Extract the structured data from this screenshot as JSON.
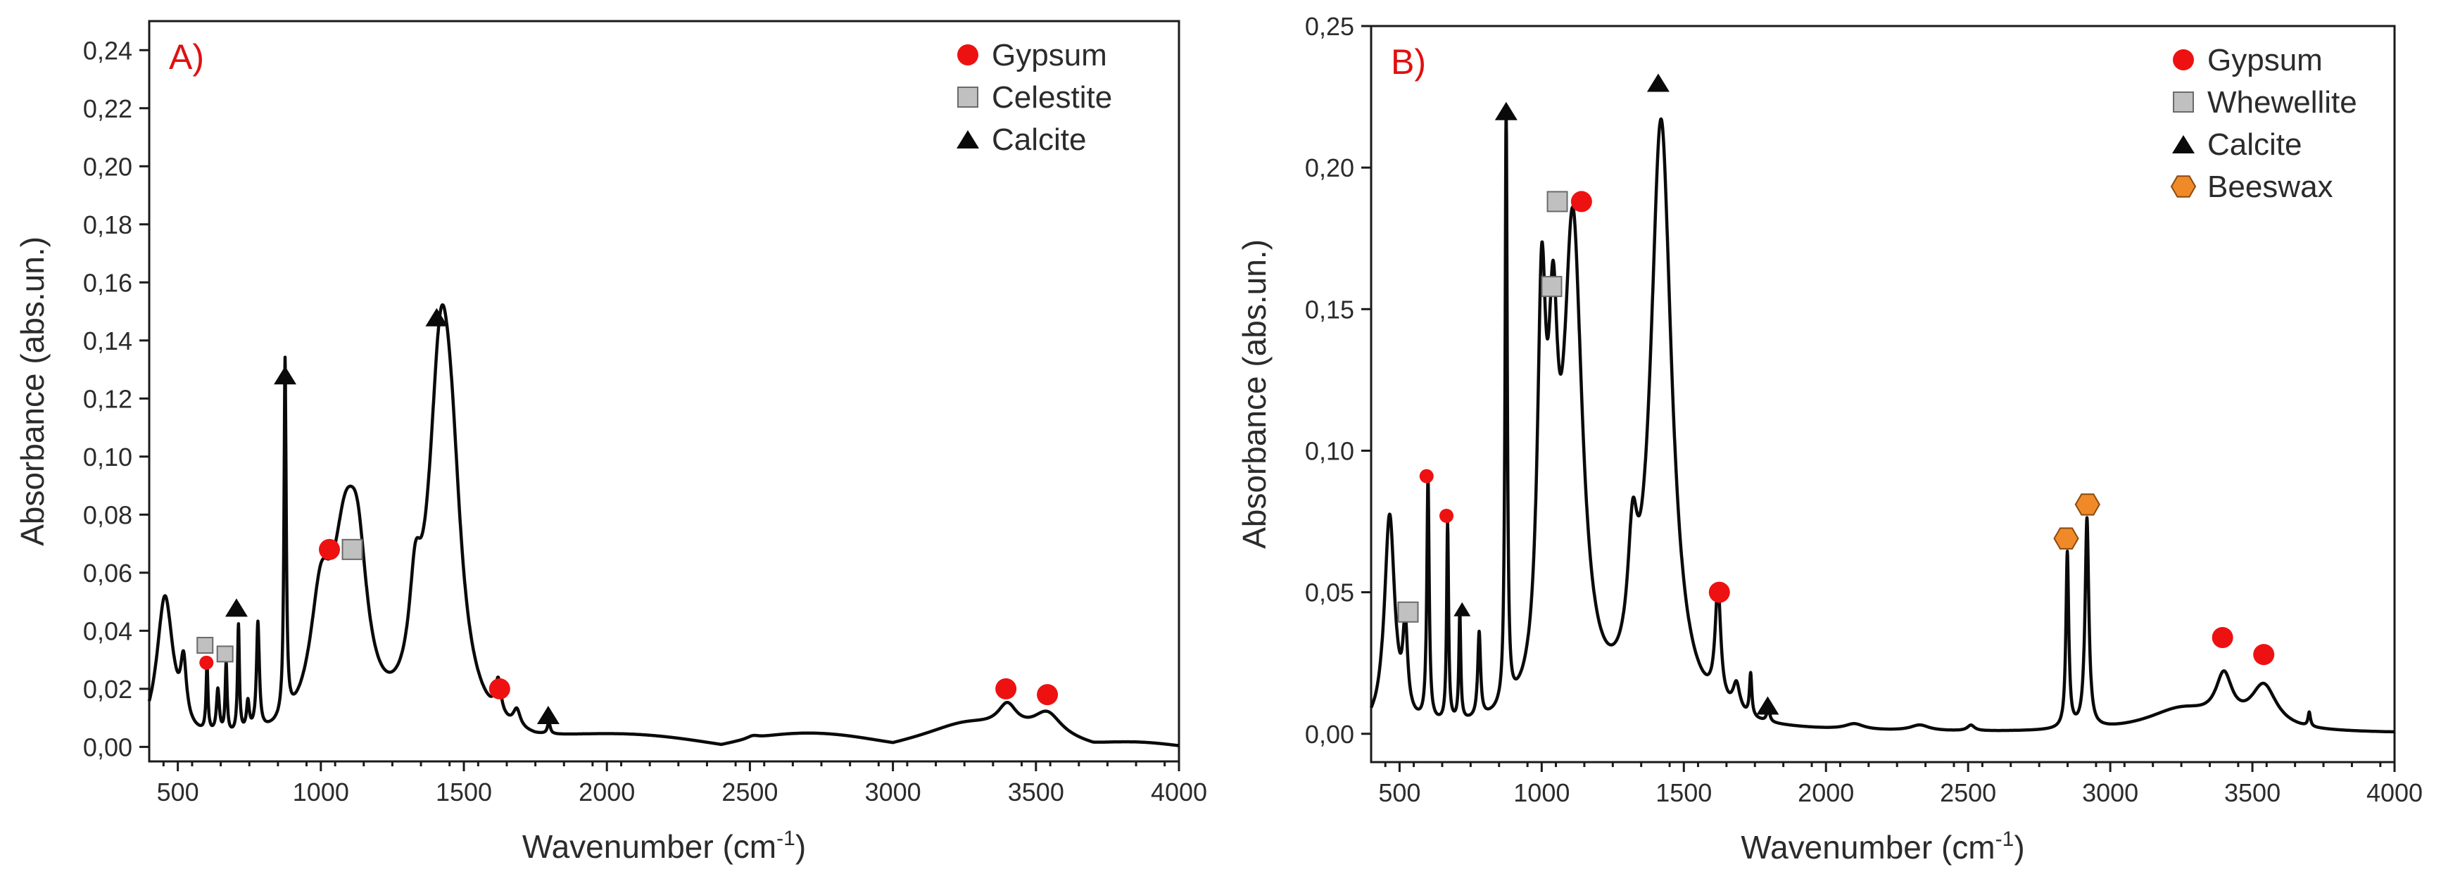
{
  "colors": {
    "gypsum": "#ee1111",
    "grey_square": "#c0c0c0",
    "calcite": "#0a0a0a",
    "beeswax": "#f08a28",
    "panel_label": "#e01010"
  },
  "chart_data": [
    {
      "type": "line",
      "panel_label": "A)",
      "xlabel": "Wavenumber (cm",
      "xlabel_sup": "-1",
      "xlabel_close": ")",
      "ylabel": "Absorbance (abs.un.)",
      "xlim": [
        400,
        4000
      ],
      "ylim": [
        -0.005,
        0.25
      ],
      "x_ticks": [
        {
          "v": 500,
          "label": "500"
        },
        {
          "v": 1000,
          "label": "1000"
        },
        {
          "v": 1500,
          "label": "1500"
        },
        {
          "v": 2000,
          "label": "2000"
        },
        {
          "v": 2500,
          "label": "2500"
        },
        {
          "v": 3000,
          "label": "3000"
        },
        {
          "v": 3500,
          "label": "3500"
        },
        {
          "v": 4000,
          "label": "4000"
        }
      ],
      "y_ticks": [
        {
          "v": 0.0,
          "label": "0,00"
        },
        {
          "v": 0.02,
          "label": "0,02"
        },
        {
          "v": 0.04,
          "label": "0,04"
        },
        {
          "v": 0.06,
          "label": "0,06"
        },
        {
          "v": 0.08,
          "label": "0,08"
        },
        {
          "v": 0.1,
          "label": "0,10"
        },
        {
          "v": 0.12,
          "label": "0,12"
        },
        {
          "v": 0.14,
          "label": "0,14"
        },
        {
          "v": 0.16,
          "label": "0,16"
        },
        {
          "v": 0.18,
          "label": "0,18"
        },
        {
          "v": 0.2,
          "label": "0,20"
        },
        {
          "v": 0.22,
          "label": "0,22"
        },
        {
          "v": 0.24,
          "label": "0,24"
        }
      ],
      "legend": [
        {
          "label": "Gypsum",
          "marker": "circle",
          "color": "#ee1111"
        },
        {
          "label": "Celestite",
          "marker": "square",
          "color": "#c0c0c0"
        },
        {
          "label": "Calcite",
          "marker": "triangle",
          "color": "#0a0a0a"
        }
      ],
      "baseline": 0.0,
      "peaks": [
        [
          455,
          0.05,
          35
        ],
        [
          520,
          0.02,
          12
        ],
        [
          602,
          0.023,
          4
        ],
        [
          640,
          0.015,
          6
        ],
        [
          669,
          0.024,
          4
        ],
        [
          712,
          0.037,
          4
        ],
        [
          745,
          0.01,
          6
        ],
        [
          780,
          0.037,
          6
        ],
        [
          875,
          0.123,
          4.5
        ],
        [
          1000,
          0.04,
          45
        ],
        [
          1085,
          0.057,
          55
        ],
        [
          1130,
          0.04,
          40
        ],
        [
          1330,
          0.03,
          25
        ],
        [
          1420,
          0.126,
          52
        ],
        [
          1460,
          0.04,
          40
        ],
        [
          1620,
          0.012,
          12
        ],
        [
          1685,
          0.006,
          15
        ],
        [
          1797,
          0.004,
          6
        ],
        [
          2510,
          0.001,
          25
        ],
        [
          3250,
          0.004,
          150
        ],
        [
          3400,
          0.008,
          40
        ],
        [
          3540,
          0.008,
          60
        ]
      ],
      "bumps": [
        [
          1750,
          2400,
          0.003
        ],
        [
          2400,
          3000,
          0.004
        ],
        [
          3000,
          3700,
          0.004
        ],
        [
          3700,
          4000,
          0.001
        ]
      ],
      "series": [
        {
          "name": "Spectrum A"
        }
      ],
      "annotations": [
        {
          "marker": "circle",
          "x": 600,
          "y": 0.029,
          "size": "small"
        },
        {
          "marker": "square",
          "x": 595,
          "y": 0.035,
          "size": "small"
        },
        {
          "marker": "square",
          "x": 665,
          "y": 0.032,
          "size": "small"
        },
        {
          "marker": "triangle",
          "x": 705,
          "y": 0.048
        },
        {
          "marker": "triangle",
          "x": 875,
          "y": 0.128
        },
        {
          "marker": "circle",
          "x": 1030,
          "y": 0.068
        },
        {
          "marker": "square",
          "x": 1110,
          "y": 0.068
        },
        {
          "marker": "triangle",
          "x": 1405,
          "y": 0.148
        },
        {
          "marker": "circle",
          "x": 1625,
          "y": 0.02
        },
        {
          "marker": "triangle",
          "x": 1795,
          "y": 0.011
        },
        {
          "marker": "circle",
          "x": 3395,
          "y": 0.02
        },
        {
          "marker": "circle",
          "x": 3540,
          "y": 0.018
        }
      ]
    },
    {
      "type": "line",
      "panel_label": "B)",
      "xlabel": "Wavenumber (cm",
      "xlabel_sup": "-1",
      "xlabel_close": ")",
      "ylabel": "Absorbance (abs.un.)",
      "xlim": [
        400,
        4000
      ],
      "ylim": [
        -0.01,
        0.25
      ],
      "x_ticks": [
        {
          "v": 500,
          "label": "500"
        },
        {
          "v": 1000,
          "label": "1000"
        },
        {
          "v": 1500,
          "label": "1500"
        },
        {
          "v": 2000,
          "label": "2000"
        },
        {
          "v": 2500,
          "label": "2500"
        },
        {
          "v": 3000,
          "label": "3000"
        },
        {
          "v": 3500,
          "label": "3500"
        },
        {
          "v": 4000,
          "label": "4000"
        }
      ],
      "y_ticks": [
        {
          "v": 0.0,
          "label": "0,00"
        },
        {
          "v": 0.05,
          "label": "0,05"
        },
        {
          "v": 0.1,
          "label": "0,10"
        },
        {
          "v": 0.15,
          "label": "0,15"
        },
        {
          "v": 0.2,
          "label": "0,20"
        },
        {
          "v": 0.25,
          "label": "0,25"
        }
      ],
      "legend": [
        {
          "label": "Gypsum",
          "marker": "circle",
          "color": "#ee1111"
        },
        {
          "label": "Whewellite",
          "marker": "square",
          "color": "#c0c0c0"
        },
        {
          "label": "Calcite",
          "marker": "triangle",
          "color": "#0a0a0a"
        },
        {
          "label": "Beeswax",
          "marker": "hexagon",
          "color": "#f08a28"
        }
      ],
      "baseline": 0.0,
      "peaks": [
        [
          465,
          0.075,
          22
        ],
        [
          520,
          0.03,
          10
        ],
        [
          600,
          0.086,
          5
        ],
        [
          669,
          0.07,
          4
        ],
        [
          712,
          0.038,
          4
        ],
        [
          780,
          0.03,
          6
        ],
        [
          875,
          0.21,
          4.5
        ],
        [
          1000,
          0.13,
          18
        ],
        [
          1040,
          0.1,
          20
        ],
        [
          1110,
          0.17,
          40
        ],
        [
          1320,
          0.04,
          20
        ],
        [
          1420,
          0.212,
          45
        ],
        [
          1620,
          0.04,
          12
        ],
        [
          1685,
          0.01,
          15
        ],
        [
          1735,
          0.015,
          5
        ],
        [
          1797,
          0.005,
          6
        ],
        [
          2100,
          0.002,
          40
        ],
        [
          2330,
          0.002,
          40
        ],
        [
          2510,
          0.002,
          15
        ],
        [
          2849,
          0.062,
          6
        ],
        [
          2918,
          0.074,
          8
        ],
        [
          3250,
          0.008,
          150
        ],
        [
          3400,
          0.016,
          35
        ],
        [
          3540,
          0.015,
          55
        ],
        [
          3700,
          0.005,
          5
        ]
      ],
      "bumps": [],
      "series": [
        {
          "name": "Spectrum B"
        }
      ],
      "annotations": [
        {
          "marker": "square",
          "x": 530,
          "y": 0.043
        },
        {
          "marker": "circle",
          "x": 595,
          "y": 0.091,
          "size": "small"
        },
        {
          "marker": "circle",
          "x": 665,
          "y": 0.077,
          "size": "small"
        },
        {
          "marker": "triangle",
          "x": 720,
          "y": 0.044,
          "size": "small"
        },
        {
          "marker": "triangle",
          "x": 875,
          "y": 0.22
        },
        {
          "marker": "square",
          "x": 1035,
          "y": 0.158
        },
        {
          "marker": "square",
          "x": 1055,
          "y": 0.188
        },
        {
          "marker": "circle",
          "x": 1140,
          "y": 0.188
        },
        {
          "marker": "triangle",
          "x": 1410,
          "y": 0.23
        },
        {
          "marker": "circle",
          "x": 1625,
          "y": 0.05
        },
        {
          "marker": "triangle",
          "x": 1795,
          "y": 0.01
        },
        {
          "marker": "hexagon",
          "x": 2845,
          "y": 0.069
        },
        {
          "marker": "hexagon",
          "x": 2920,
          "y": 0.081
        },
        {
          "marker": "circle",
          "x": 3395,
          "y": 0.034
        },
        {
          "marker": "circle",
          "x": 3540,
          "y": 0.028
        }
      ]
    }
  ]
}
